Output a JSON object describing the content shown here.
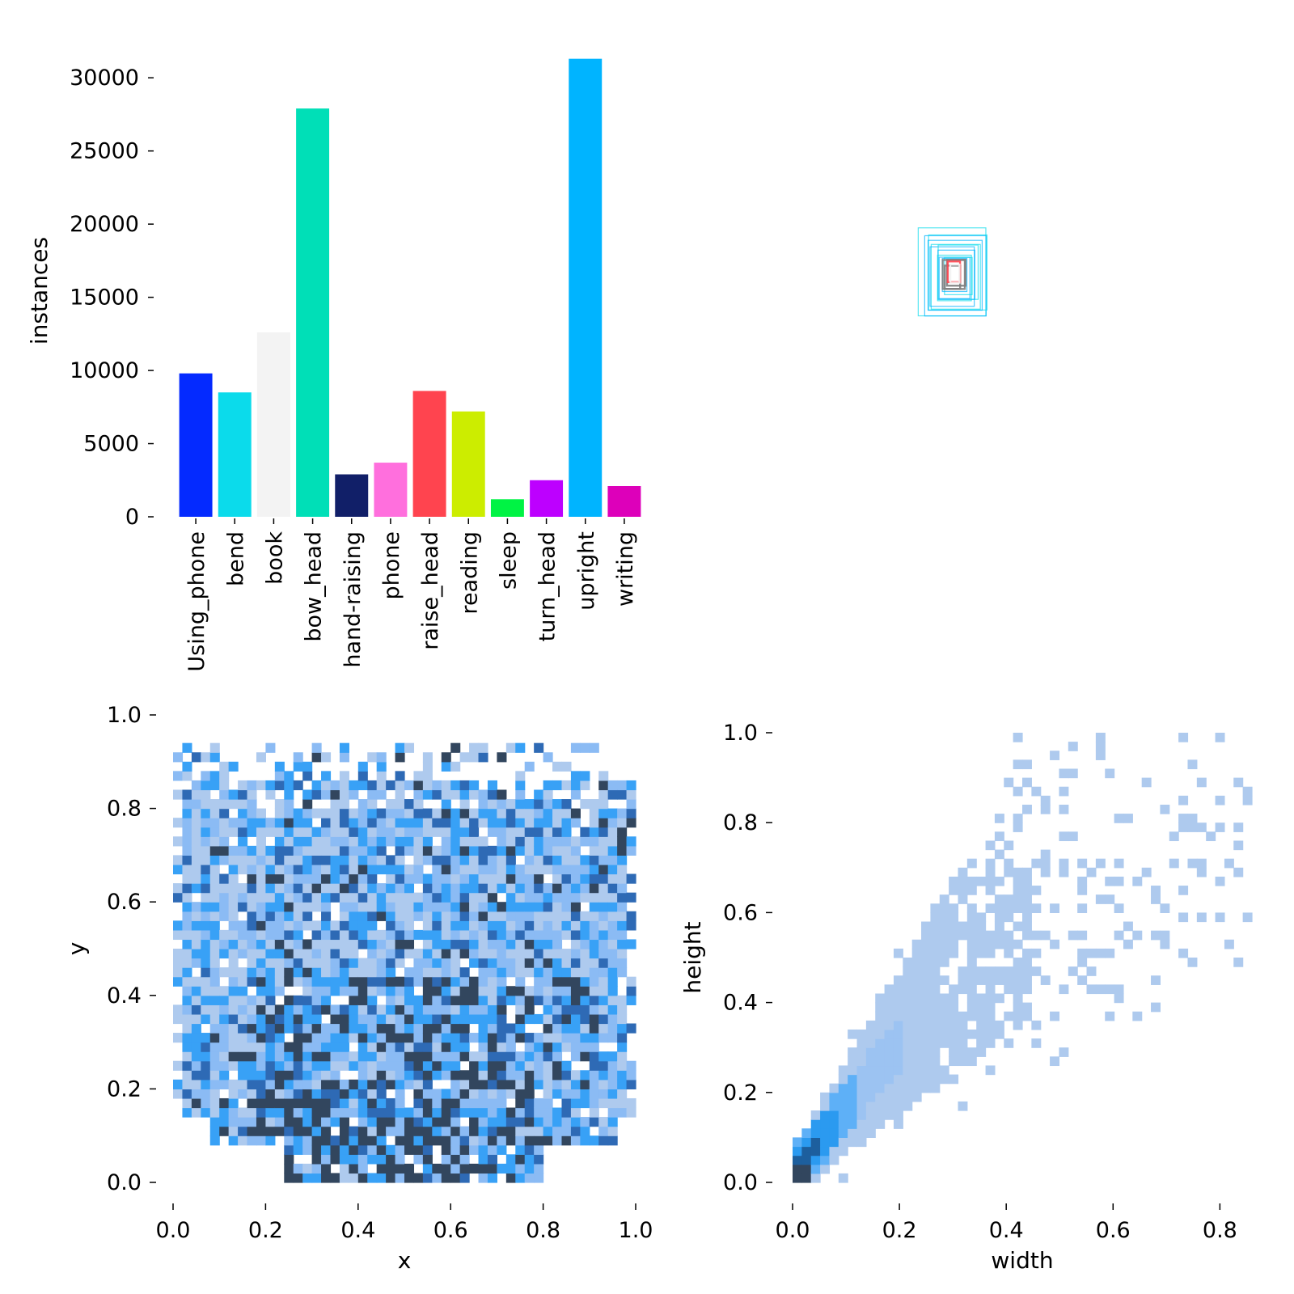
{
  "chart_data": [
    {
      "type": "bar",
      "categories": [
        "Using_phone",
        "bend",
        "book",
        "bow_head",
        "hand-raising",
        "phone",
        "raise_head",
        "reading",
        "sleep",
        "turn_head",
        "upright",
        "writing"
      ],
      "values": [
        9800,
        8500,
        12600,
        27900,
        2900,
        3700,
        8600,
        7200,
        1200,
        2500,
        31300,
        2100
      ],
      "colors": [
        "#042aff",
        "#0bdbeb",
        "#f3f3f3",
        "#00dfb7",
        "#111f68",
        "#ff6fdd",
        "#ff444f",
        "#cced00",
        "#00f344",
        "#bd00ff",
        "#00b4ff",
        "#dd00ba"
      ],
      "ylabel": "instances",
      "ylim": [
        0,
        32000
      ],
      "yticks": [
        "0",
        "5000",
        "10000",
        "15000",
        "20000",
        "25000",
        "30000"
      ],
      "yticks_values": [
        0,
        5000,
        10000,
        15000,
        20000,
        25000,
        30000
      ]
    },
    {
      "type": "box-overlay",
      "box_colors": [
        "#0bdbeb",
        "#00b4ff",
        "#042aff",
        "#ff444f",
        "#f3f3f3"
      ],
      "center_x": 0.5,
      "center_y": 0.5,
      "widths": [
        0.11,
        0.1,
        0.095,
        0.088,
        0.08,
        0.072,
        0.065,
        0.06,
        0.055,
        0.05,
        0.045,
        0.04,
        0.036,
        0.03,
        0.025,
        0.02,
        0.015
      ],
      "heights": [
        0.17,
        0.155,
        0.145,
        0.135,
        0.125,
        0.115,
        0.105,
        0.095,
        0.088,
        0.08,
        0.072,
        0.064,
        0.056,
        0.05,
        0.045,
        0.04,
        0.035
      ]
    },
    {
      "type": "heatmap",
      "xlabel": "x",
      "ylabel": "y",
      "xlim": [
        0,
        1
      ],
      "ylim": [
        0,
        1
      ],
      "xticks": [
        "0.0",
        "0.2",
        "0.4",
        "0.6",
        "0.8",
        "1.0"
      ],
      "yticks": [
        "0.0",
        "0.2",
        "0.4",
        "0.6",
        "0.8",
        "1.0"
      ],
      "bins": 50,
      "color_levels": [
        "#aecaee",
        "#8bbbf4",
        "#38a1f6",
        "#2e6ab5",
        "#32465e"
      ]
    },
    {
      "type": "heatmap",
      "xlabel": "width",
      "ylabel": "height",
      "xlim": [
        0,
        0.86
      ],
      "ylim": [
        0,
        1
      ],
      "xticks": [
        "0.0",
        "0.2",
        "0.4",
        "0.6",
        "0.8"
      ],
      "yticks": [
        "0.0",
        "0.2",
        "0.4",
        "0.6",
        "0.8",
        "1.0"
      ],
      "bins": 50,
      "color_levels": [
        "#aecaee",
        "#9cc3f2",
        "#5eb0f7",
        "#2b9af0",
        "#1d5f9e",
        "#32465e"
      ]
    }
  ]
}
